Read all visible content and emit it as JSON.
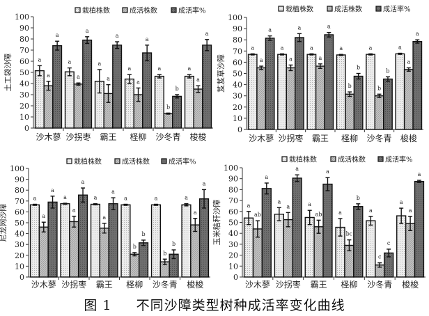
{
  "caption": {
    "figure_no": "图 1",
    "title": "不同沙障类型树种成活率变化曲线"
  },
  "colors": {
    "planted": "#ececec",
    "survived": "#c4c4c4",
    "rate": "#6e6e6e",
    "outline": "#111111"
  },
  "chart_data": [
    {
      "type": "bar",
      "ylabel": "土工袋沙障",
      "ylim": [
        0,
        100
      ],
      "yticks": [
        0,
        10,
        20,
        30,
        40,
        50,
        60,
        70,
        80,
        90,
        100
      ],
      "categories": [
        "沙木蓼",
        "沙拐枣",
        "霸王",
        "柽柳",
        "沙冬青",
        "梭梭"
      ],
      "legend": "top",
      "series": [
        {
          "name": "栽植株数",
          "values": [
            51.5,
            50.5,
            42,
            44,
            46.5,
            46.5
          ],
          "errors": [
            4.5,
            3.5,
            10.5,
            4,
            1.5,
            1.5
          ],
          "letters": [
            "a",
            "a",
            "a",
            "a",
            "a",
            "a"
          ]
        },
        {
          "name": "成活株数",
          "values": [
            38,
            39.5,
            31,
            30,
            13,
            35
          ],
          "errors": [
            4,
            1,
            8,
            6,
            0.5,
            3
          ],
          "letters": [
            "a",
            "a",
            "a",
            "a",
            "b",
            "a"
          ]
        },
        {
          "name": "成活率%",
          "values": [
            74,
            79,
            74.5,
            67.5,
            28.5,
            74.5
          ],
          "errors": [
            4,
            3,
            3,
            7,
            1.5,
            5
          ],
          "letters": [
            "a",
            "a",
            "a",
            "a",
            "b",
            "a"
          ]
        }
      ]
    },
    {
      "type": "bar",
      "ylabel": "芨芨草沙障",
      "ylim": [
        0,
        100
      ],
      "yticks": [
        0,
        10,
        20,
        30,
        40,
        50,
        60,
        70,
        80,
        90,
        100
      ],
      "categories": [
        "沙木蓼",
        "沙拐枣",
        "霸王",
        "柽柳",
        "沙冬青",
        "梭梭"
      ],
      "legend": "top",
      "series": [
        {
          "name": "栽植株数",
          "values": [
            67,
            67,
            67,
            66.5,
            67,
            67.5
          ],
          "errors": [
            0.5,
            0.5,
            0.5,
            0.5,
            0.5,
            0.5
          ],
          "letters": [
            "a",
            "a",
            "a",
            "a",
            "a",
            "a"
          ]
        },
        {
          "name": "成活株数",
          "values": [
            55,
            55,
            56.5,
            31.5,
            30,
            53.5
          ],
          "errors": [
            1.5,
            2.5,
            2,
            2,
            1.5,
            1.5
          ],
          "letters": [
            "a",
            "a",
            "a",
            "b",
            "b",
            "a"
          ]
        },
        {
          "name": "成活率%",
          "values": [
            81.5,
            82,
            84.5,
            47.5,
            45,
            78.5
          ],
          "errors": [
            2,
            3.5,
            2,
            2.5,
            2,
            1.5
          ],
          "letters": [
            "a",
            "a",
            "a",
            "b",
            "b",
            "a"
          ]
        }
      ]
    },
    {
      "type": "bar",
      "ylabel": "尼龙网沙障",
      "ylim": [
        0,
        100
      ],
      "yticks": [
        0,
        10,
        20,
        30,
        40,
        50,
        60,
        70,
        80,
        90,
        100
      ],
      "categories": [
        "沙木蓼",
        "沙拐枣",
        "霸王",
        "柽柳",
        "沙冬青",
        "梭梭"
      ],
      "legend": "top",
      "series": [
        {
          "name": "栽植株数",
          "values": [
            66.5,
            67.5,
            67,
            66.5,
            66.5,
            66.5
          ],
          "errors": [
            0.5,
            0.5,
            0.5,
            0.5,
            0.5,
            1
          ],
          "letters": [
            "a",
            "a",
            "a",
            "a",
            "a",
            "a"
          ]
        },
        {
          "name": "成活株数",
          "values": [
            46,
            51,
            45,
            21,
            14,
            48
          ],
          "errors": [
            4.5,
            5,
            4.5,
            1.5,
            2.5,
            6
          ],
          "letters": [
            "a",
            "a",
            "a",
            "b",
            "b",
            "a"
          ]
        },
        {
          "name": "成活率%",
          "values": [
            69,
            75.5,
            67.5,
            31.5,
            21,
            72
          ],
          "errors": [
            5.5,
            6.5,
            5.5,
            2.5,
            4,
            8.5
          ],
          "letters": [
            "a",
            "a",
            "a",
            "b",
            "b",
            "a"
          ]
        }
      ]
    },
    {
      "type": "bar",
      "ylabel": "玉米秸秆沙障",
      "ylim": [
        0,
        100
      ],
      "yticks": [
        0,
        10,
        20,
        30,
        40,
        50,
        60,
        70,
        80,
        90,
        100
      ],
      "categories": [
        "沙木蓼",
        "沙拐枣",
        "霸王",
        "柽柳",
        "沙冬青",
        "梭梭"
      ],
      "legend": "top",
      "series": [
        {
          "name": "栽植株数",
          "values": [
            54,
            57.5,
            54.5,
            45.5,
            51.5,
            56
          ],
          "errors": [
            6,
            6,
            6.5,
            8,
            4,
            7
          ],
          "letters": [
            "a",
            "a",
            "a",
            "a",
            "a",
            "a"
          ]
        },
        {
          "name": "成活株数",
          "values": [
            44,
            52.5,
            46,
            29,
            11,
            49
          ],
          "errors": [
            7.5,
            6.5,
            6,
            5,
            2,
            6.5
          ],
          "letters": [
            "ab",
            "a",
            "ab",
            "bc",
            "c",
            "a"
          ]
        },
        {
          "name": "成活率%",
          "values": [
            81,
            90.5,
            85,
            64.5,
            22,
            87.5
          ],
          "errors": [
            5,
            3,
            6,
            2.5,
            3.5,
            1
          ],
          "letters": [
            "a",
            "a",
            "a",
            "b",
            "c",
            "a"
          ]
        }
      ]
    }
  ]
}
